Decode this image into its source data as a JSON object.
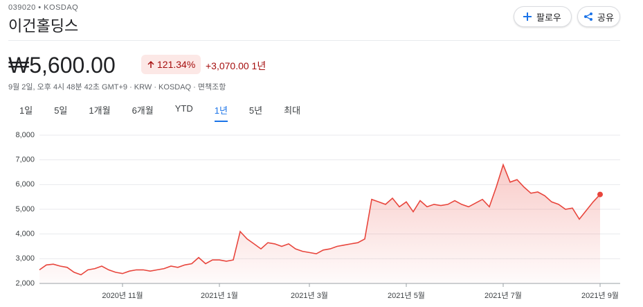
{
  "header": {
    "ticker": "039020 • KOSDAQ",
    "name": "이건홀딩스",
    "follow": "팔로우",
    "share": "공유"
  },
  "price": {
    "value": "₩5,600.00",
    "change_pct": "121.34%",
    "change_abs": "+3,070.00 1년",
    "meta": "9월 2일, 오후 4시 48분 42초 GMT+9 · KRW · KOSDAQ · 면책조항"
  },
  "tabs": [
    "1일",
    "5일",
    "1개월",
    "6개월",
    "YTD",
    "1년",
    "5년",
    "최대"
  ],
  "active_tab": 5,
  "chart_data": {
    "type": "line",
    "color": "#e8453c",
    "categories": [
      null,
      null,
      null,
      null,
      null,
      null,
      null,
      null,
      null,
      null,
      null,
      null,
      "2020년 11월",
      null,
      null,
      null,
      null,
      null,
      null,
      null,
      null,
      null,
      null,
      null,
      null,
      null,
      "2021년 1월",
      null,
      null,
      null,
      null,
      null,
      null,
      null,
      null,
      null,
      null,
      null,
      null,
      "2021년 3월",
      null,
      null,
      null,
      null,
      null,
      null,
      null,
      null,
      null,
      null,
      null,
      null,
      null,
      "2021년 5월",
      null,
      null,
      null,
      null,
      null,
      null,
      null,
      null,
      null,
      null,
      null,
      null,
      null,
      "2021년 7월",
      null,
      null,
      null,
      null,
      null,
      null,
      null,
      null,
      null,
      null,
      null,
      null,
      null,
      "2021년 9월"
    ],
    "values": [
      2550,
      2750,
      2780,
      2700,
      2650,
      2450,
      2350,
      2550,
      2600,
      2700,
      2550,
      2450,
      2400,
      2500,
      2550,
      2550,
      2500,
      2550,
      2600,
      2700,
      2650,
      2750,
      2800,
      3050,
      2800,
      2950,
      2950,
      2900,
      2950,
      4100,
      3800,
      3600,
      3400,
      3650,
      3600,
      3500,
      3600,
      3400,
      3300,
      3250,
      3200,
      3350,
      3400,
      3500,
      3550,
      3600,
      3650,
      3800,
      5400,
      5300,
      5200,
      5450,
      5100,
      5300,
      4900,
      5350,
      5100,
      5200,
      5150,
      5200,
      5350,
      5200,
      5100,
      5250,
      5400,
      5100,
      5900,
      6800,
      6100,
      6200,
      5900,
      5650,
      5700,
      5550,
      5300,
      5200,
      5000,
      5050,
      4600,
      4950,
      5300,
      5600
    ],
    "ylim": [
      2000,
      8000
    ],
    "yticks": [
      {
        "value": 2000,
        "label": "2,000"
      },
      {
        "value": 3000,
        "label": "3,000"
      },
      {
        "value": 4000,
        "label": "4,000"
      },
      {
        "value": 5000,
        "label": "5,000"
      },
      {
        "value": 6000,
        "label": "6,000"
      },
      {
        "value": 7000,
        "label": "7,000"
      },
      {
        "value": 8000,
        "label": "8,000"
      }
    ],
    "grid": true
  }
}
